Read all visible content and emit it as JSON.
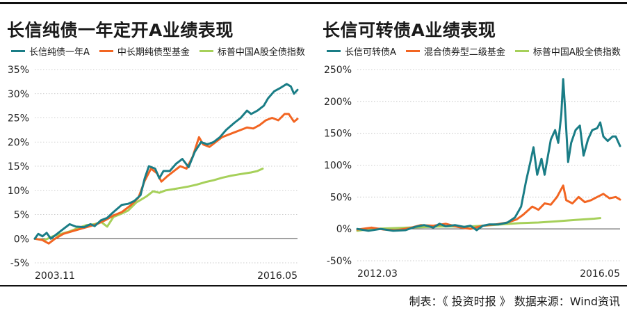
{
  "footer": {
    "credit": "制表：《 投资时报 》 数据来源：Wind资讯"
  },
  "colors": {
    "teal": "#1a7d86",
    "orange": "#f26522",
    "green": "#a6d05a",
    "grid": "#bdbdbd"
  },
  "chart_data": [
    {
      "type": "line",
      "title": "长信纯债一年定开A业绩表现",
      "ylim": [
        -0.05,
        0.35
      ],
      "yticks": [
        -0.05,
        0,
        0.05,
        0.1,
        0.15,
        0.2,
        0.25,
        0.3,
        0.35
      ],
      "ytick_labels": [
        "-5%",
        "0%",
        "5%",
        "10%",
        "15%",
        "20%",
        "25%",
        "30%",
        "35%"
      ],
      "xlim": [
        2003.83,
        2016.42
      ],
      "xtick_labels": [
        {
          "x": 2003.83,
          "label": "2003.11",
          "anchor": "start"
        },
        {
          "x": 2016.42,
          "label": "2016.05",
          "anchor": "end"
        }
      ],
      "series": [
        {
          "name": "长信纯债一年A",
          "color": "#1a7d86",
          "points": [
            [
              2003.83,
              0.0
            ],
            [
              2004.0,
              0.01
            ],
            [
              2004.2,
              0.005
            ],
            [
              2004.4,
              0.012
            ],
            [
              2004.6,
              0.0
            ],
            [
              2004.9,
              0.01
            ],
            [
              2005.2,
              0.02
            ],
            [
              2005.5,
              0.03
            ],
            [
              2005.8,
              0.025
            ],
            [
              2006.2,
              0.024
            ],
            [
              2006.5,
              0.03
            ],
            [
              2006.7,
              0.026
            ],
            [
              2007.0,
              0.038
            ],
            [
              2007.3,
              0.043
            ],
            [
              2007.6,
              0.055
            ],
            [
              2008.0,
              0.07
            ],
            [
              2008.3,
              0.072
            ],
            [
              2008.6,
              0.078
            ],
            [
              2008.9,
              0.09
            ],
            [
              2009.1,
              0.125
            ],
            [
              2009.3,
              0.15
            ],
            [
              2009.6,
              0.145
            ],
            [
              2009.8,
              0.125
            ],
            [
              2010.0,
              0.14
            ],
            [
              2010.3,
              0.14
            ],
            [
              2010.6,
              0.155
            ],
            [
              2010.9,
              0.165
            ],
            [
              2011.2,
              0.148
            ],
            [
              2011.5,
              0.18
            ],
            [
              2011.8,
              0.2
            ],
            [
              2012.1,
              0.195
            ],
            [
              2012.4,
              0.2
            ],
            [
              2012.7,
              0.21
            ],
            [
              2013.0,
              0.225
            ],
            [
              2013.4,
              0.24
            ],
            [
              2013.7,
              0.25
            ],
            [
              2014.0,
              0.265
            ],
            [
              2014.2,
              0.258
            ],
            [
              2014.5,
              0.265
            ],
            [
              2014.8,
              0.275
            ],
            [
              2015.0,
              0.29
            ],
            [
              2015.3,
              0.305
            ],
            [
              2015.6,
              0.312
            ],
            [
              2015.9,
              0.32
            ],
            [
              2016.1,
              0.315
            ],
            [
              2016.25,
              0.3
            ],
            [
              2016.42,
              0.308
            ]
          ]
        },
        {
          "name": "中长期纯债型基金",
          "color": "#f26522",
          "points": [
            [
              2003.83,
              0.0
            ],
            [
              2004.2,
              -0.003
            ],
            [
              2004.5,
              -0.01
            ],
            [
              2004.8,
              0.0
            ],
            [
              2005.2,
              0.01
            ],
            [
              2005.6,
              0.015
            ],
            [
              2006.0,
              0.02
            ],
            [
              2006.4,
              0.025
            ],
            [
              2006.8,
              0.03
            ],
            [
              2007.2,
              0.038
            ],
            [
              2007.6,
              0.048
            ],
            [
              2008.0,
              0.055
            ],
            [
              2008.4,
              0.068
            ],
            [
              2008.8,
              0.085
            ],
            [
              2009.1,
              0.12
            ],
            [
              2009.4,
              0.145
            ],
            [
              2009.7,
              0.135
            ],
            [
              2009.9,
              0.118
            ],
            [
              2010.2,
              0.13
            ],
            [
              2010.5,
              0.14
            ],
            [
              2010.8,
              0.15
            ],
            [
              2011.1,
              0.145
            ],
            [
              2011.4,
              0.17
            ],
            [
              2011.7,
              0.21
            ],
            [
              2011.9,
              0.195
            ],
            [
              2012.2,
              0.19
            ],
            [
              2012.5,
              0.2
            ],
            [
              2012.8,
              0.21
            ],
            [
              2013.1,
              0.215
            ],
            [
              2013.4,
              0.22
            ],
            [
              2013.7,
              0.225
            ],
            [
              2014.0,
              0.23
            ],
            [
              2014.3,
              0.228
            ],
            [
              2014.6,
              0.235
            ],
            [
              2014.9,
              0.245
            ],
            [
              2015.2,
              0.25
            ],
            [
              2015.5,
              0.245
            ],
            [
              2015.8,
              0.258
            ],
            [
              2016.0,
              0.258
            ],
            [
              2016.25,
              0.242
            ],
            [
              2016.42,
              0.248
            ]
          ]
        },
        {
          "name": "标普中国A股全债指数",
          "color": "#a6d05a",
          "points": [
            [
              2003.83,
              0.0
            ],
            [
              2004.3,
              -0.003
            ],
            [
              2004.7,
              0.005
            ],
            [
              2005.1,
              0.01
            ],
            [
              2005.5,
              0.015
            ],
            [
              2005.9,
              0.022
            ],
            [
              2006.3,
              0.028
            ],
            [
              2006.7,
              0.03
            ],
            [
              2007.0,
              0.035
            ],
            [
              2007.3,
              0.025
            ],
            [
              2007.6,
              0.045
            ],
            [
              2008.0,
              0.052
            ],
            [
              2008.3,
              0.058
            ],
            [
              2008.7,
              0.075
            ],
            [
              2008.9,
              0.08
            ],
            [
              2009.2,
              0.088
            ],
            [
              2009.5,
              0.098
            ],
            [
              2009.8,
              0.095
            ],
            [
              2010.1,
              0.1
            ],
            [
              2010.4,
              0.102
            ],
            [
              2010.8,
              0.105
            ],
            [
              2011.2,
              0.108
            ],
            [
              2011.6,
              0.112
            ],
            [
              2012.0,
              0.117
            ],
            [
              2012.4,
              0.121
            ],
            [
              2012.8,
              0.126
            ],
            [
              2013.2,
              0.13
            ],
            [
              2013.6,
              0.133
            ],
            [
              2013.9,
              0.135
            ],
            [
              2014.2,
              0.137
            ],
            [
              2014.5,
              0.14
            ],
            [
              2014.75,
              0.145
            ]
          ]
        }
      ]
    },
    {
      "type": "line",
      "title": "长信可转债A业绩表现",
      "ylim": [
        -0.5,
        2.5
      ],
      "yticks": [
        -0.5,
        0,
        0.5,
        1.0,
        1.5,
        2.0,
        2.5
      ],
      "ytick_labels": [
        "-50%",
        "0%",
        "50%",
        "100%",
        "150%",
        "200%",
        "250%"
      ],
      "xlim": [
        2012.17,
        2016.42
      ],
      "xtick_labels": [
        {
          "x": 2012.17,
          "label": "2012.03",
          "anchor": "start"
        },
        {
          "x": 2016.42,
          "label": "2016.05",
          "anchor": "end"
        }
      ],
      "series": [
        {
          "name": "长信可转债A",
          "color": "#1a7d86",
          "points": [
            [
              2012.17,
              0.0
            ],
            [
              2012.35,
              -0.03
            ],
            [
              2012.55,
              0.0
            ],
            [
              2012.75,
              -0.03
            ],
            [
              2012.95,
              -0.02
            ],
            [
              2013.1,
              0.03
            ],
            [
              2013.25,
              0.06
            ],
            [
              2013.4,
              0.02
            ],
            [
              2013.5,
              0.08
            ],
            [
              2013.6,
              0.04
            ],
            [
              2013.75,
              0.06
            ],
            [
              2013.9,
              0.03
            ],
            [
              2014.0,
              0.05
            ],
            [
              2014.1,
              -0.02
            ],
            [
              2014.2,
              0.05
            ],
            [
              2014.3,
              0.07
            ],
            [
              2014.45,
              0.07
            ],
            [
              2014.6,
              0.1
            ],
            [
              2014.72,
              0.18
            ],
            [
              2014.82,
              0.35
            ],
            [
              2014.9,
              0.75
            ],
            [
              2014.97,
              1.05
            ],
            [
              2015.02,
              1.28
            ],
            [
              2015.08,
              0.85
            ],
            [
              2015.15,
              1.1
            ],
            [
              2015.2,
              0.85
            ],
            [
              2015.3,
              1.4
            ],
            [
              2015.37,
              1.55
            ],
            [
              2015.42,
              1.35
            ],
            [
              2015.47,
              1.8
            ],
            [
              2015.5,
              2.35
            ],
            [
              2015.53,
              1.9
            ],
            [
              2015.58,
              1.05
            ],
            [
              2015.63,
              1.35
            ],
            [
              2015.7,
              1.55
            ],
            [
              2015.77,
              1.62
            ],
            [
              2015.83,
              1.15
            ],
            [
              2015.9,
              1.4
            ],
            [
              2015.97,
              1.55
            ],
            [
              2016.05,
              1.58
            ],
            [
              2016.1,
              1.67
            ],
            [
              2016.15,
              1.45
            ],
            [
              2016.22,
              1.38
            ],
            [
              2016.3,
              1.45
            ],
            [
              2016.35,
              1.45
            ],
            [
              2016.42,
              1.3
            ]
          ]
        },
        {
          "name": "混合债券型二级基金",
          "color": "#f26522",
          "points": [
            [
              2012.17,
              -0.01
            ],
            [
              2012.4,
              0.02
            ],
            [
              2012.6,
              -0.01
            ],
            [
              2012.8,
              -0.02
            ],
            [
              2013.0,
              0.01
            ],
            [
              2013.2,
              0.06
            ],
            [
              2013.4,
              0.05
            ],
            [
              2013.6,
              0.08
            ],
            [
              2013.8,
              0.03
            ],
            [
              2014.0,
              0.0
            ],
            [
              2014.2,
              0.05
            ],
            [
              2014.4,
              0.07
            ],
            [
              2014.6,
              0.1
            ],
            [
              2014.75,
              0.15
            ],
            [
              2014.85,
              0.22
            ],
            [
              2015.0,
              0.35
            ],
            [
              2015.1,
              0.3
            ],
            [
              2015.2,
              0.4
            ],
            [
              2015.3,
              0.38
            ],
            [
              2015.4,
              0.5
            ],
            [
              2015.5,
              0.68
            ],
            [
              2015.55,
              0.45
            ],
            [
              2015.65,
              0.4
            ],
            [
              2015.75,
              0.5
            ],
            [
              2015.85,
              0.42
            ],
            [
              2015.95,
              0.45
            ],
            [
              2016.05,
              0.5
            ],
            [
              2016.15,
              0.55
            ],
            [
              2016.25,
              0.48
            ],
            [
              2016.35,
              0.5
            ],
            [
              2016.42,
              0.46
            ]
          ]
        },
        {
          "name": "标普中国A股全债指数",
          "color": "#a6d05a",
          "points": [
            [
              2012.17,
              -0.03
            ],
            [
              2012.4,
              0.0
            ],
            [
              2012.7,
              0.01
            ],
            [
              2013.0,
              0.02
            ],
            [
              2013.3,
              0.03
            ],
            [
              2013.6,
              0.04
            ],
            [
              2013.9,
              0.035
            ],
            [
              2014.2,
              0.05
            ],
            [
              2014.5,
              0.07
            ],
            [
              2014.8,
              0.09
            ],
            [
              2015.1,
              0.1
            ],
            [
              2015.4,
              0.12
            ],
            [
              2015.7,
              0.14
            ],
            [
              2016.0,
              0.16
            ],
            [
              2016.1,
              0.17
            ]
          ]
        }
      ]
    }
  ]
}
